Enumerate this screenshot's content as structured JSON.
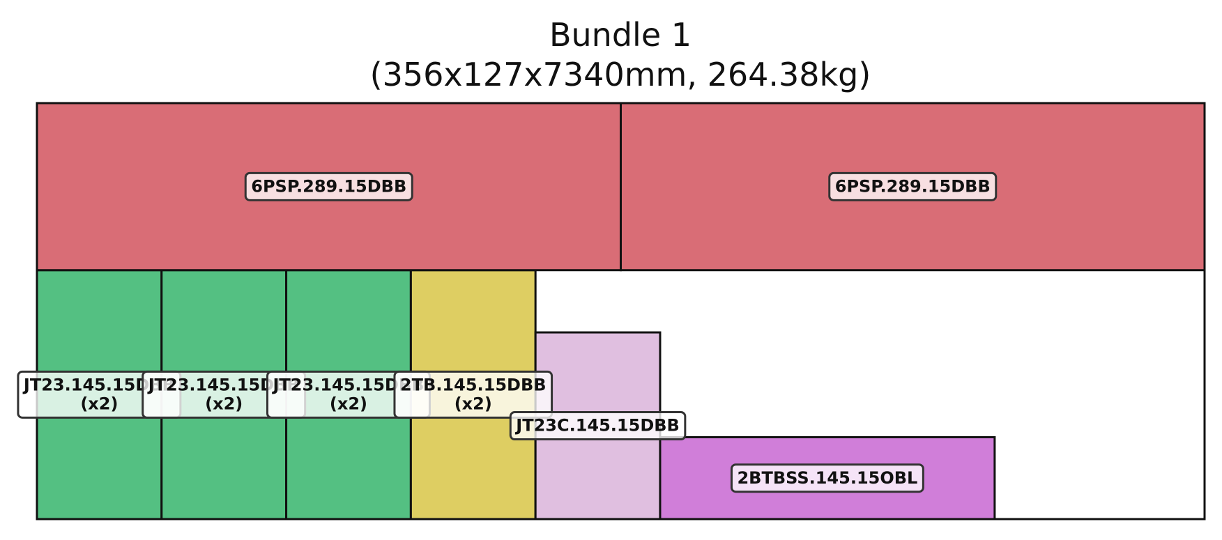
{
  "chart_data": {
    "type": "packing-layout",
    "title": "Bundle 1",
    "subtitle": "(356x127x7340mm, 264.38kg)",
    "bundle": {
      "width": 356,
      "height": 127
    },
    "items": [
      {
        "name": "JT23.145.15DBB",
        "count_label": "(x2)",
        "x": [
          0,
          38
        ],
        "y": [
          0,
          76
        ],
        "color": "#54c082"
      },
      {
        "name": "JT23.145.15DBB",
        "count_label": "(x2)",
        "x": [
          38,
          76
        ],
        "y": [
          0,
          76
        ],
        "color": "#54c082"
      },
      {
        "name": "JT23.145.15DBB",
        "count_label": "(x2)",
        "x": [
          76,
          114
        ],
        "y": [
          0,
          76
        ],
        "color": "#54c082"
      },
      {
        "name": "2TB.145.15DBB",
        "count_label": "(x2)",
        "x": [
          114,
          152
        ],
        "y": [
          0,
          76
        ],
        "color": "#dece62"
      },
      {
        "name": "JT23C.145.15DBB",
        "count_label": "",
        "x": [
          152,
          190
        ],
        "y": [
          0,
          57
        ],
        "color": "#e0bfe0"
      },
      {
        "name": "2BTBSS.145.15OBL",
        "count_label": "",
        "x": [
          190,
          292
        ],
        "y": [
          0,
          25
        ],
        "color": "#d07ed9"
      },
      {
        "name": "6PSP.289.15DBB",
        "count_label": "",
        "x": [
          0,
          178
        ],
        "y": [
          76,
          127
        ],
        "color": "#d96d76"
      },
      {
        "name": "6PSP.289.15DBB",
        "count_label": "",
        "x": [
          178,
          356
        ],
        "y": [
          76,
          127
        ],
        "color": "#d96d76"
      }
    ]
  }
}
